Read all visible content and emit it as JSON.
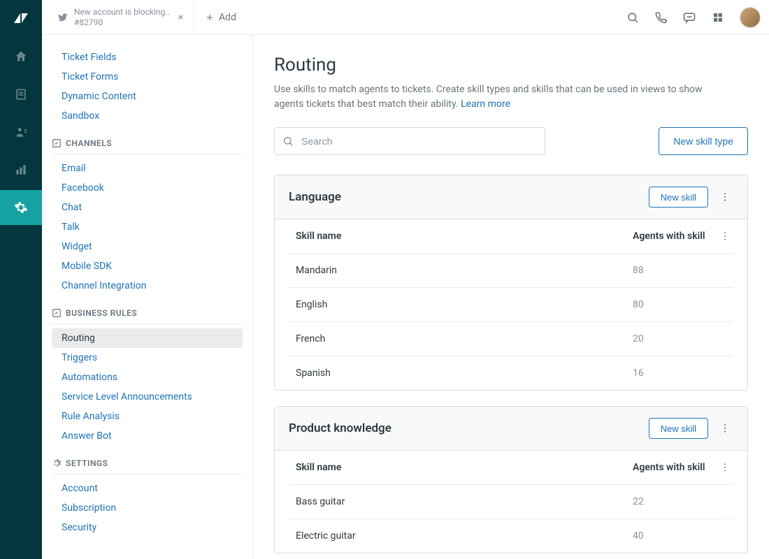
{
  "tab": {
    "title": "New account is blocking..",
    "sub": "#82790",
    "add_label": "Add"
  },
  "sidebar": {
    "manage": {
      "items": [
        {
          "label": "Ticket Fields"
        },
        {
          "label": "Ticket Forms"
        },
        {
          "label": "Dynamic Content"
        },
        {
          "label": "Sandbox"
        }
      ]
    },
    "channels": {
      "heading": "CHANNELS",
      "items": [
        {
          "label": "Email"
        },
        {
          "label": "Facebook"
        },
        {
          "label": "Chat"
        },
        {
          "label": "Talk"
        },
        {
          "label": "Widget"
        },
        {
          "label": "Mobile SDK"
        },
        {
          "label": "Channel Integration"
        }
      ]
    },
    "rules": {
      "heading": "BUSINESS RULES",
      "items": [
        {
          "label": "Routing",
          "active": true
        },
        {
          "label": "Triggers"
        },
        {
          "label": "Automations"
        },
        {
          "label": "Service Level Announcements"
        },
        {
          "label": "Rule Analysis"
        },
        {
          "label": "Answer Bot"
        }
      ]
    },
    "settings": {
      "heading": "SETTINGS",
      "items": [
        {
          "label": "Account"
        },
        {
          "label": "Subscription"
        },
        {
          "label": "Security"
        }
      ]
    }
  },
  "page": {
    "title": "Routing",
    "desc": "Use skills to match agents to tickets. Create skill types and skills that can be used in views to show agents tickets that best match their ability. ",
    "learn_more": "Learn more",
    "search_placeholder": "Search",
    "new_skill_type": "New skill type",
    "new_skill": "New skill",
    "col_name": "Skill name",
    "col_agents": "Agents with skill"
  },
  "groups": [
    {
      "title": "Language",
      "skills": [
        {
          "name": "Mandarin",
          "count": "88"
        },
        {
          "name": "English",
          "count": "80"
        },
        {
          "name": "French",
          "count": "20"
        },
        {
          "name": "Spanish",
          "count": "16"
        }
      ]
    },
    {
      "title": "Product knowledge",
      "skills": [
        {
          "name": "Bass guitar",
          "count": "22"
        },
        {
          "name": "Electric guitar",
          "count": "40"
        }
      ]
    }
  ]
}
